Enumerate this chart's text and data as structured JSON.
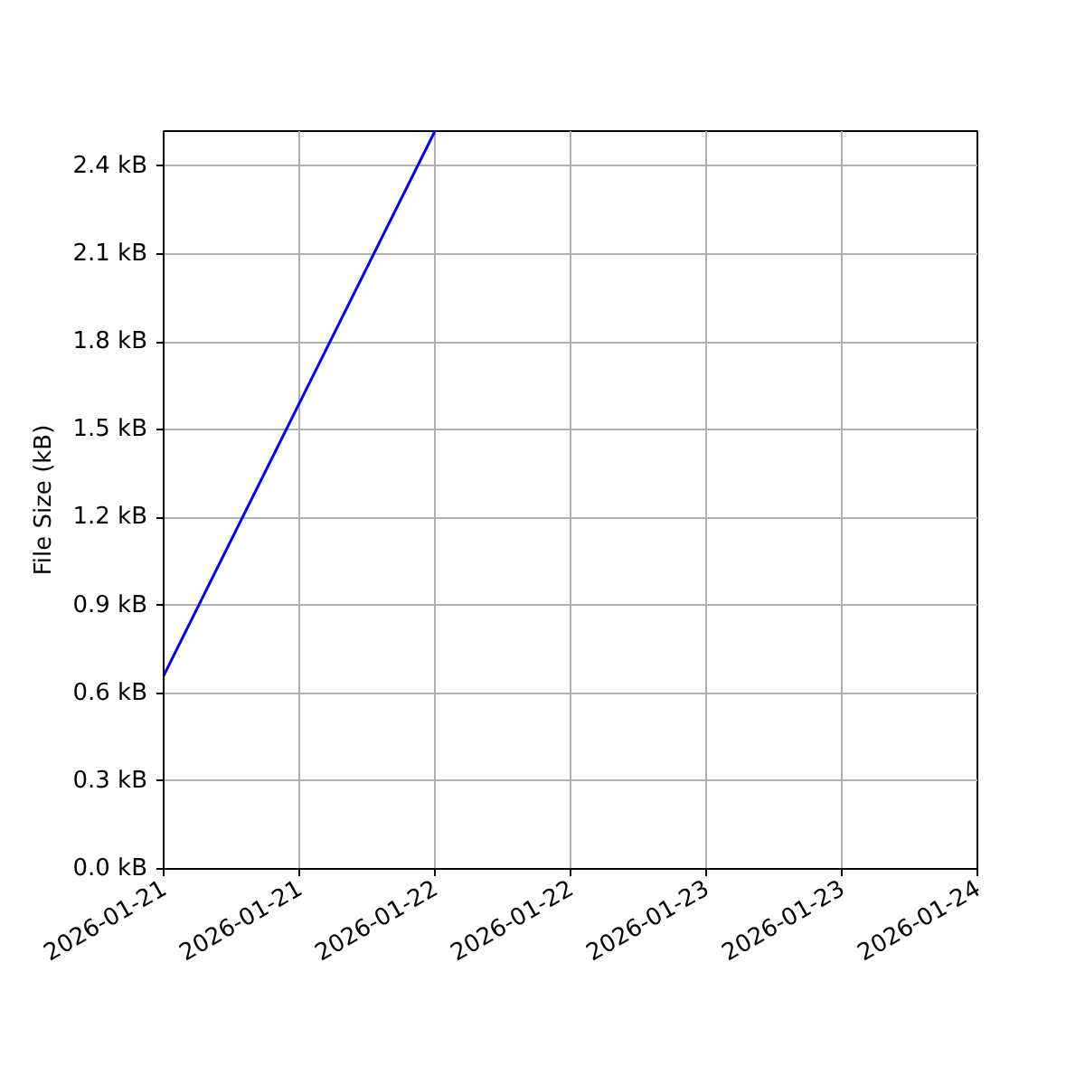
{
  "chart_data": {
    "type": "line",
    "ylabel": "File Size (kB)",
    "x": [
      "2026-01-21T00:00",
      "2026-01-22T00:00"
    ],
    "series": [
      {
        "color": "#0000ff",
        "values": [
          0.66,
          2.52
        ]
      }
    ],
    "xlim": [
      "2026-01-21T00:00",
      "2026-01-24T00:00"
    ],
    "xticks": [
      {
        "value": "2026-01-21T00:00",
        "label": "2026-01-21"
      },
      {
        "value": "2026-01-21T12:00",
        "label": "2026-01-21"
      },
      {
        "value": "2026-01-22T00:00",
        "label": "2026-01-22"
      },
      {
        "value": "2026-01-22T12:00",
        "label": "2026-01-22"
      },
      {
        "value": "2026-01-23T00:00",
        "label": "2026-01-23"
      },
      {
        "value": "2026-01-23T12:00",
        "label": "2026-01-23"
      },
      {
        "value": "2026-01-24T00:00",
        "label": "2026-01-24"
      }
    ],
    "ylim": [
      0,
      2.52
    ],
    "yticks": [
      {
        "value": 0,
        "label": "0.0 kB"
      },
      {
        "value": 0.3,
        "label": "0.3 kB"
      },
      {
        "value": 0.6,
        "label": "0.6 kB"
      },
      {
        "value": 0.9,
        "label": "0.9 kB"
      },
      {
        "value": 1.2,
        "label": "1.2 kB"
      },
      {
        "value": 1.5,
        "label": "1.5 kB"
      },
      {
        "value": 1.8,
        "label": "1.8 kB"
      },
      {
        "value": 2.1,
        "label": "2.1 kB"
      },
      {
        "value": 2.4,
        "label": "2.4 kB"
      }
    ],
    "grid": true,
    "marker": "none",
    "line_style": "solid"
  }
}
